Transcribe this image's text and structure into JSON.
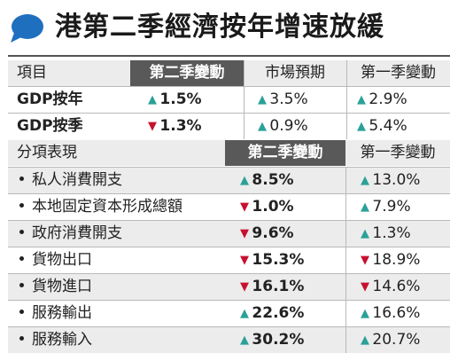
{
  "title": "港第二季經濟按年增速放緩",
  "top_table": {
    "headers": [
      "項目",
      "第二季變動",
      "市場預期",
      "第一季變動"
    ],
    "rows": [
      {
        "label": "GDP按年",
        "q2": {
          "dir": "up",
          "value": "1.5%"
        },
        "expected": {
          "dir": "up",
          "value": "3.5%"
        },
        "q1": {
          "dir": "up",
          "value": "2.9%"
        }
      },
      {
        "label": "GDP按季",
        "q2": {
          "dir": "down",
          "value": "1.3%"
        },
        "expected": {
          "dir": "up",
          "value": "0.9%"
        },
        "q1": {
          "dir": "up",
          "value": "5.4%"
        }
      }
    ]
  },
  "bottom_table": {
    "headers": [
      "分項表現",
      "第二季變動",
      "第一季變動"
    ],
    "rows": [
      {
        "label": "私人消費開支",
        "q2": {
          "dir": "up",
          "value": "8.5%"
        },
        "q1": {
          "dir": "up",
          "value": "13.0%"
        }
      },
      {
        "label": "本地固定資本形成總額",
        "q2": {
          "dir": "down",
          "value": "1.0%"
        },
        "q1": {
          "dir": "up",
          "value": "7.9%"
        }
      },
      {
        "label": "政府消費開支",
        "q2": {
          "dir": "down",
          "value": "9.6%"
        },
        "q1": {
          "dir": "up",
          "value": "1.3%"
        }
      },
      {
        "label": "貨物出口",
        "q2": {
          "dir": "down",
          "value": "15.3%"
        },
        "q1": {
          "dir": "down",
          "value": "18.9%"
        }
      },
      {
        "label": "貨物進口",
        "q2": {
          "dir": "down",
          "value": "16.1%"
        },
        "q1": {
          "dir": "down",
          "value": "14.6%"
        }
      },
      {
        "label": "服務輸出",
        "q2": {
          "dir": "up",
          "value": "22.6%"
        },
        "q1": {
          "dir": "up",
          "value": "16.6%"
        }
      },
      {
        "label": "服務輸入",
        "q2": {
          "dir": "up",
          "value": "30.2%"
        },
        "q1": {
          "dir": "up",
          "value": "20.7%"
        }
      }
    ]
  },
  "colors": {
    "up": "#2aa198",
    "down": "#c8102e",
    "header_dark": "#595959",
    "band": "#ececec",
    "bubble": "#1f6fbf"
  }
}
